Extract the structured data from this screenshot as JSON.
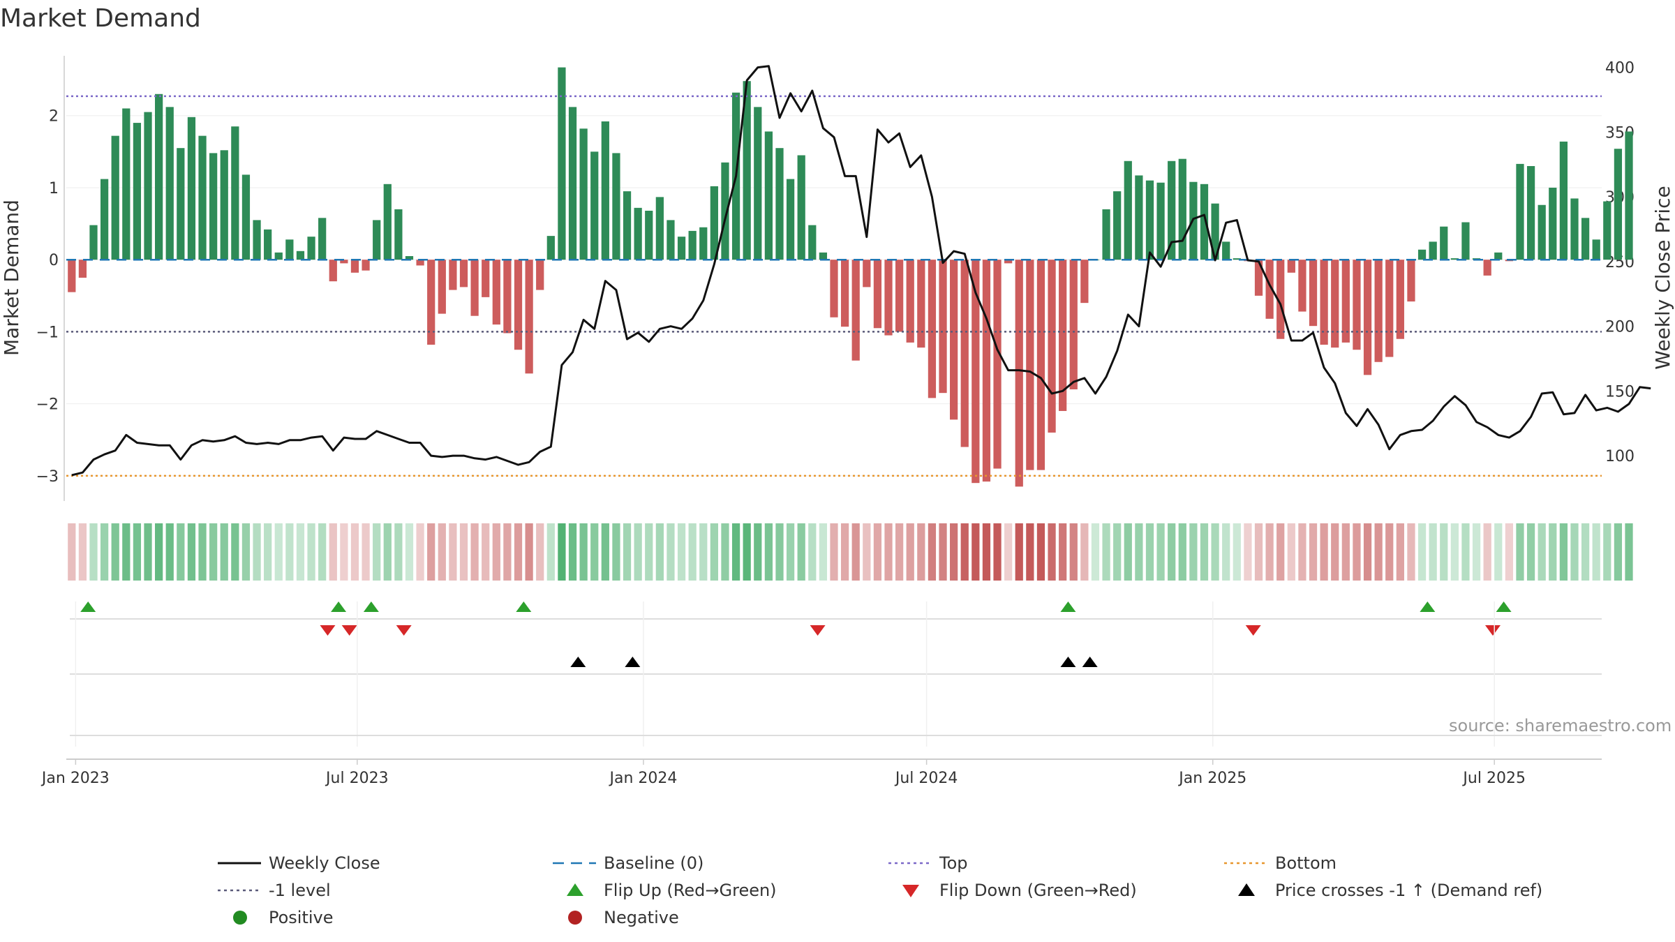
{
  "chart_data": {
    "type": "bar",
    "title": "Market Demand",
    "ylabel_left": "Market Demand",
    "ylabel_right": "Weekly Close Price",
    "ylim_left": [
      -3.35,
      2.85
    ],
    "ylim_right": [
      65,
      410
    ],
    "yticks_left": [
      "2",
      "1",
      "0",
      "−1",
      "−2",
      "−3"
    ],
    "yticks_right": [
      "400",
      "350",
      "300",
      "250",
      "200",
      "150",
      "100"
    ],
    "x_start": "2022-12-26",
    "x_end": "2025-09-08",
    "x_ticks": [
      {
        "date": "2023-01-01",
        "label": "Jan 2023"
      },
      {
        "date": "2023-07-01",
        "label": "Jul 2023"
      },
      {
        "date": "2024-01-01",
        "label": "Jan 2024"
      },
      {
        "date": "2024-07-01",
        "label": "Jul 2024"
      },
      {
        "date": "2025-01-01",
        "label": "Jan 2025"
      },
      {
        "date": "2025-07-01",
        "label": "Jul 2025"
      }
    ],
    "reference_lines": {
      "top": 2.27,
      "minus_one": -1,
      "bottom": -3.0,
      "baseline": 0
    },
    "demand": [
      -0.45,
      -0.25,
      0.48,
      1.12,
      1.72,
      2.1,
      1.9,
      2.05,
      2.3,
      2.12,
      1.55,
      1.98,
      1.72,
      1.48,
      1.52,
      1.85,
      1.18,
      0.55,
      0.42,
      0.1,
      0.28,
      0.12,
      0.32,
      0.58,
      -0.3,
      -0.05,
      -0.18,
      -0.15,
      0.55,
      1.05,
      0.7,
      0.05,
      -0.08,
      -1.18,
      -0.75,
      -0.42,
      -0.38,
      -0.78,
      -0.52,
      -0.9,
      -1.02,
      -1.25,
      -1.58,
      -0.42,
      0.33,
      2.67,
      2.12,
      1.82,
      1.5,
      1.92,
      1.48,
      0.95,
      0.72,
      0.68,
      0.87,
      0.55,
      0.32,
      0.4,
      0.45,
      1.02,
      1.35,
      2.32,
      2.48,
      2.12,
      1.78,
      1.55,
      1.12,
      1.45,
      0.48,
      0.1,
      -0.8,
      -0.93,
      -1.4,
      -0.38,
      -0.95,
      -1.05,
      -1.0,
      -1.15,
      -1.22,
      -1.92,
      -1.85,
      -2.22,
      -2.6,
      -3.1,
      -3.08,
      -2.9,
      -0.05,
      -3.15,
      -2.92,
      -2.92,
      -2.4,
      -2.1,
      -1.8,
      -0.6,
      0.0,
      0.7,
      0.95,
      1.37,
      1.17,
      1.1,
      1.07,
      1.37,
      1.4,
      1.08,
      1.05,
      0.78,
      0.25,
      0.02,
      -0.02,
      -0.5,
      -0.82,
      -1.1,
      -0.18,
      -0.72,
      -0.92,
      -1.18,
      -1.22,
      -1.15,
      -1.25,
      -1.6,
      -1.42,
      -1.35,
      -1.1,
      -0.58,
      0.14,
      0.25,
      0.46,
      0.02,
      0.52,
      0.02,
      -0.22,
      0.1,
      -0.02,
      1.33,
      1.3,
      0.76,
      1.0,
      1.64,
      0.85,
      0.58,
      0.28,
      0.81,
      1.54,
      1.78
    ],
    "price": [
      85,
      87,
      97,
      101,
      104,
      116,
      110,
      109,
      108,
      108,
      97,
      108,
      112,
      111,
      112,
      115,
      110,
      109,
      110,
      109,
      112,
      112,
      114,
      115,
      104,
      114,
      113,
      113,
      119,
      116,
      113,
      110,
      110,
      100,
      99,
      100,
      100,
      98,
      97,
      99,
      96,
      93,
      95,
      103,
      107,
      170,
      180,
      205,
      198,
      235,
      228,
      190,
      195,
      188,
      198,
      200,
      198,
      206,
      220,
      248,
      283,
      316,
      390,
      400,
      401,
      361,
      380,
      366,
      382,
      353,
      346,
      316,
      316,
      269,
      352,
      342,
      349,
      323,
      332,
      300,
      249,
      258,
      256,
      226,
      206,
      182,
      166,
      166,
      165,
      160,
      148,
      150,
      157,
      160,
      148,
      161,
      181,
      209,
      200,
      257,
      246,
      265,
      266,
      283,
      286,
      251,
      280,
      282,
      251,
      250,
      232,
      217,
      189,
      189,
      195,
      168,
      156,
      133,
      123,
      136,
      124,
      105,
      116,
      119,
      120,
      127,
      138,
      146,
      139,
      126,
      122,
      116,
      114,
      119,
      130,
      148,
      149,
      132,
      133,
      147,
      135,
      137,
      134,
      140,
      153,
      152
    ],
    "status_colors": {
      "green": "#2e8b57",
      "red": "#cd5c5c",
      "top": "#7b68c8",
      "bottom": "#e8962e",
      "baseline": "#1f77b4",
      "minus_one": "#5a5a7a",
      "price": "#111111"
    },
    "flip_up_dates": [
      "2023-01-09",
      "2023-06-19",
      "2023-07-10",
      "2023-10-16",
      "2024-09-30",
      "2025-05-19",
      "2025-07-07"
    ],
    "flip_down_dates": [
      "2023-06-12",
      "2023-06-26",
      "2023-07-31",
      "2024-04-22",
      "2025-01-27",
      "2025-06-30"
    ],
    "price_cross_dates": [
      "2023-11-20",
      "2023-12-25",
      "2024-09-30",
      "2024-10-14"
    ]
  },
  "legend": [
    {
      "label": "Weekly Close",
      "style": "line-solid",
      "color": "#111111"
    },
    {
      "label": "Baseline (0)",
      "style": "line-dash",
      "color": "#1f77b4"
    },
    {
      "label": "Top",
      "style": "line-dot",
      "color": "#7b68c8"
    },
    {
      "label": "Bottom",
      "style": "line-dot",
      "color": "#e8962e"
    },
    {
      "label": "-1 level",
      "style": "line-dot",
      "color": "#5a5a7a"
    },
    {
      "label": "Flip Up (Red→Green)",
      "style": "triangle-up",
      "color": "#2ca02c"
    },
    {
      "label": "Flip Down (Green→Red)",
      "style": "triangle-down",
      "color": "#d62728"
    },
    {
      "label": "Price crosses -1 ↑ (Demand ref)",
      "style": "triangle-up",
      "color": "#000000"
    },
    {
      "label": "Positive",
      "style": "circle",
      "color": "#228b22"
    },
    {
      "label": "Negative",
      "style": "circle",
      "color": "#b22222"
    }
  ],
  "source": "source: sharemaestro.com"
}
